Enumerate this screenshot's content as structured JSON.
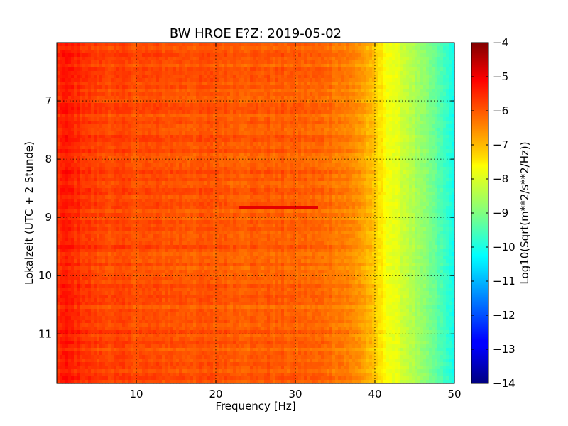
{
  "chart_data": {
    "type": "heatmap",
    "title": "BW HROE E?Z: 2019-05-02",
    "xlabel": "Frequency [Hz]",
    "ylabel": "Lokalzeit (UTC + 2 Stunde)",
    "xlim": [
      0,
      50
    ],
    "ylim": [
      6.0,
      11.85
    ],
    "y_inverted": true,
    "x_ticks": [
      10,
      20,
      30,
      40,
      50
    ],
    "y_ticks": [
      7,
      8,
      9,
      10,
      11
    ],
    "grid": true,
    "colormap": "jet",
    "colorbar": {
      "label": "Log10(Sqrt(m**2/s**2/Hz))",
      "range": [
        -14,
        -4
      ],
      "ticks": [
        -4,
        -5,
        -6,
        -7,
        -8,
        -9,
        -10,
        -11,
        -12,
        -13,
        -14
      ]
    },
    "spectrum_profile": {
      "frequency_hz": [
        0,
        1,
        2,
        3,
        5,
        10,
        20,
        30,
        34,
        36,
        38,
        39,
        40,
        41,
        42,
        43,
        44,
        45,
        46,
        47,
        48,
        49,
        50
      ],
      "level": [
        -5.7,
        -5.5,
        -5.6,
        -5.7,
        -5.9,
        -6.0,
        -6.1,
        -6.2,
        -6.3,
        -6.45,
        -6.7,
        -6.95,
        -7.3,
        -7.6,
        -7.9,
        -8.1,
        -8.3,
        -8.6,
        -8.85,
        -9.1,
        -9.4,
        -9.75,
        -10.1
      ]
    },
    "annotations": [
      {
        "type": "band",
        "time": 8.85,
        "freq_range": [
          23,
          33
        ],
        "level": -5.0
      }
    ]
  }
}
